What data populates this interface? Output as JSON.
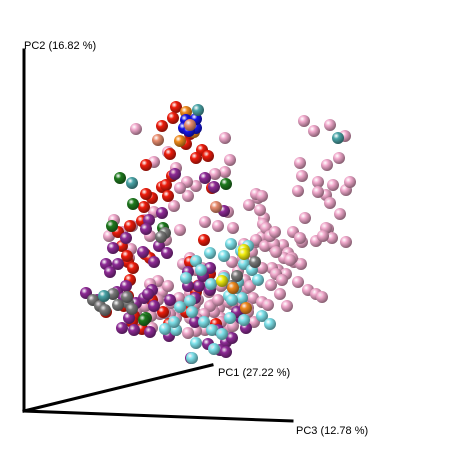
{
  "chart_data": {
    "type": "scatter",
    "title": "",
    "axes": {
      "pc1": {
        "label": "PC1 (27.22 %)"
      },
      "pc2": {
        "label": "PC2 (16.82 %)"
      },
      "pc3": {
        "label": "PC3 (12.78 %)"
      }
    },
    "grid": false,
    "legend": "none",
    "palette": {
      "pink": "#f1a9cc",
      "red": "#ee1c0c",
      "purple": "#8e2b96",
      "cyan": "#7fe3ec",
      "green": "#1e7a1e",
      "gray": "#7a7a7a",
      "orange": "#f08a1c",
      "yellow": "#f2ee10",
      "blue": "#1414e6",
      "teal": "#4aa5a8",
      "salmon": "#e98d6f"
    },
    "series": [
      {
        "color": "pink",
        "x": [
          304,
          314,
          330,
          345,
          339,
          327,
          300,
          302,
          298,
          318,
          326,
          333,
          346,
          318,
          330,
          350,
          305,
          340,
          328,
          332,
          326,
          346,
          293,
          302,
          316,
          323,
          283,
          300,
          274,
          288,
          294,
          301,
          278,
          286,
          272,
          262,
          252,
          256,
          262,
          264,
          249,
          258,
          276,
          282,
          271,
          247,
          243,
          253,
          262,
          268,
          238,
          232,
          224,
          238,
          242,
          244,
          248,
          219,
          212,
          198,
          194,
          188,
          182,
          208,
          221,
          209,
          199,
          190,
          184,
          179,
          176,
          170,
          171,
          162,
          158,
          150,
          140,
          144,
          152,
          183,
          190,
          196,
          202,
          204,
          226,
          233,
          254,
          248,
          240,
          232,
          228,
          221,
          214,
          210,
          204,
          197,
          190,
          172,
          165,
          158,
          150,
          142,
          136,
          230,
          221,
          212,
          205,
          196,
          188,
          170,
          160,
          151,
          145,
          150,
          168,
          186,
          150,
          166,
          180,
          205,
          218,
          233,
          244,
          256,
          265,
          274,
          284,
          292,
          256,
          260,
          263,
          266,
          270,
          276,
          298,
          308,
          316,
          322,
          243,
          245,
          250,
          225,
          230,
          225,
          215,
          188,
          196,
          187,
          180,
          174,
          154,
          144,
          132,
          122,
          114,
          109,
          131,
          129,
          228,
          262,
          275,
          290,
          287,
          280,
          233,
          195,
          218,
          154,
          168,
          176,
          136
        ],
        "y": [
          121,
          131,
          125,
          136,
          158,
          165,
          163,
          176,
          191,
          182,
          195,
          185,
          190,
          192,
          203,
          182,
          218,
          214,
          229,
          238,
          228,
          242,
          232,
          242,
          241,
          236,
          245,
          238,
          248,
          253,
          262,
          264,
          270,
          274,
          268,
          268,
          252,
          242,
          237,
          218,
          205,
          198,
          274,
          280,
          285,
          288,
          300,
          298,
          302,
          305,
          271,
          262,
          276,
          296,
          303,
          305,
          308,
          308,
          305,
          300,
          311,
          308,
          302,
          276,
          286,
          292,
          285,
          293,
          300,
          298,
          318,
          314,
          303,
          292,
          281,
          312,
          320,
          324,
          328,
          264,
          258,
          270,
          268,
          282,
          320,
          318,
          322,
          312,
          312,
          304,
          302,
          318,
          312,
          306,
          314,
          319,
          318,
          322,
          313,
          300,
          297,
          306,
          312,
          327,
          322,
          326,
          330,
          331,
          333,
          326,
          314,
          316,
          306,
          284,
          286,
          278,
          236,
          240,
          230,
          222,
          226,
          228,
          244,
          240,
          246,
          244,
          258,
          258,
          194,
          210,
          224,
          228,
          236,
          252,
          282,
          290,
          294,
          297,
          258,
          280,
          286,
          138,
          160,
          172,
          174,
          196,
          186,
          182,
          188,
          206,
          212,
          220,
          226,
          232,
          220,
          236,
          249,
          258,
          212,
          196,
          232,
          260,
          306,
          294,
          326,
          304,
          300,
          162,
          152,
          168,
          129
        ]
      },
      {
        "color": "red",
        "x": [
          176,
          173,
          190,
          202,
          196,
          186,
          170,
          162,
          208,
          146,
          162,
          152,
          172,
          166,
          146,
          144,
          142,
          130,
          118,
          122,
          128,
          133,
          127,
          124,
          134,
          132,
          142,
          186,
          176,
          169,
          163,
          152,
          196,
          198,
          210,
          145,
          150,
          106,
          204,
          190,
          168,
          212,
          128,
          130,
          216
        ],
        "y": [
          107,
          118,
          134,
          150,
          158,
          144,
          154,
          126,
          156,
          165,
          187,
          198,
          176,
          185,
          194,
          207,
          221,
          226,
          232,
          246,
          262,
          268,
          256,
          306,
          316,
          322,
          329,
          312,
          330,
          324,
          312,
          300,
          292,
          286,
          274,
          254,
          258,
          312,
          240,
          262,
          196,
          188,
          296,
          280,
          324
        ]
      },
      {
        "color": "purple",
        "x": [
          175,
          205,
          214,
          224,
          162,
          149,
          146,
          159,
          167,
          118,
          113,
          126,
          143,
          154,
          152,
          126,
          106,
          110,
          86,
          97,
          117,
          124,
          136,
          144,
          148,
          154,
          129,
          122,
          134,
          188,
          199,
          210,
          218,
          226,
          232,
          241,
          246,
          210,
          203,
          195,
          188,
          170,
          169,
          191,
          208,
          220,
          226,
          237,
          245,
          195,
          150
        ],
        "y": [
          174,
          178,
          187,
          211,
          213,
          220,
          229,
          246,
          253,
          264,
          248,
          238,
          252,
          262,
          290,
          286,
          264,
          272,
          293,
          300,
          292,
          298,
          303,
          298,
          294,
          306,
          318,
          328,
          330,
          272,
          286,
          290,
          330,
          342,
          338,
          318,
          328,
          268,
          276,
          298,
          286,
          300,
          336,
          358,
          344,
          350,
          352,
          312,
          308,
          322,
          332
        ]
      },
      {
        "color": "cyan",
        "x": [
          231,
          241,
          248,
          224,
          210,
          196,
          201,
          211,
          229,
          186,
          190,
          180,
          176,
          204,
          212,
          222,
          230,
          244,
          262,
          270,
          242,
          236,
          224,
          196,
          214,
          192,
          165,
          174,
          192,
          244,
          252,
          258,
          238,
          232
        ],
        "y": [
          244,
          251,
          246,
          256,
          253,
          261,
          270,
          284,
          296,
          278,
          301,
          307,
          330,
          322,
          330,
          334,
          318,
          320,
          316,
          324,
          298,
          288,
          278,
          343,
          349,
          358,
          329,
          322,
          312,
          264,
          270,
          280,
          282,
          300
        ]
      },
      {
        "color": "green",
        "x": [
          120,
          112,
          163,
          146,
          226,
          133,
          144
        ],
        "y": [
          178,
          226,
          228,
          318,
          184,
          204,
          320
        ]
      },
      {
        "color": "gray",
        "x": [
          165,
          161,
          237,
          232,
          113,
          128,
          132,
          93,
          100,
          105,
          118,
          127,
          255
        ],
        "y": [
          233,
          237,
          276,
          286,
          294,
          303,
          309,
          300,
          306,
          310,
          305,
          297,
          262
        ]
      },
      {
        "color": "orange",
        "x": [
          180,
          194,
          186,
          233,
          246
        ],
        "y": [
          141,
          132,
          112,
          288,
          308
        ]
      },
      {
        "color": "yellow",
        "x": [
          244,
          244,
          222
        ],
        "y": [
          250,
          254,
          281
        ]
      },
      {
        "color": "blue",
        "x": [
          186,
          191,
          196,
          196,
          184,
          189
        ],
        "y": [
          120,
          124,
          128,
          119,
          128,
          131
        ]
      },
      {
        "color": "teal",
        "x": [
          132,
          338,
          198,
          104
        ],
        "y": [
          183,
          138,
          110,
          296
        ]
      },
      {
        "color": "salmon",
        "x": [
          158,
          190,
          216
        ],
        "y": [
          140,
          125,
          207
        ]
      }
    ]
  }
}
